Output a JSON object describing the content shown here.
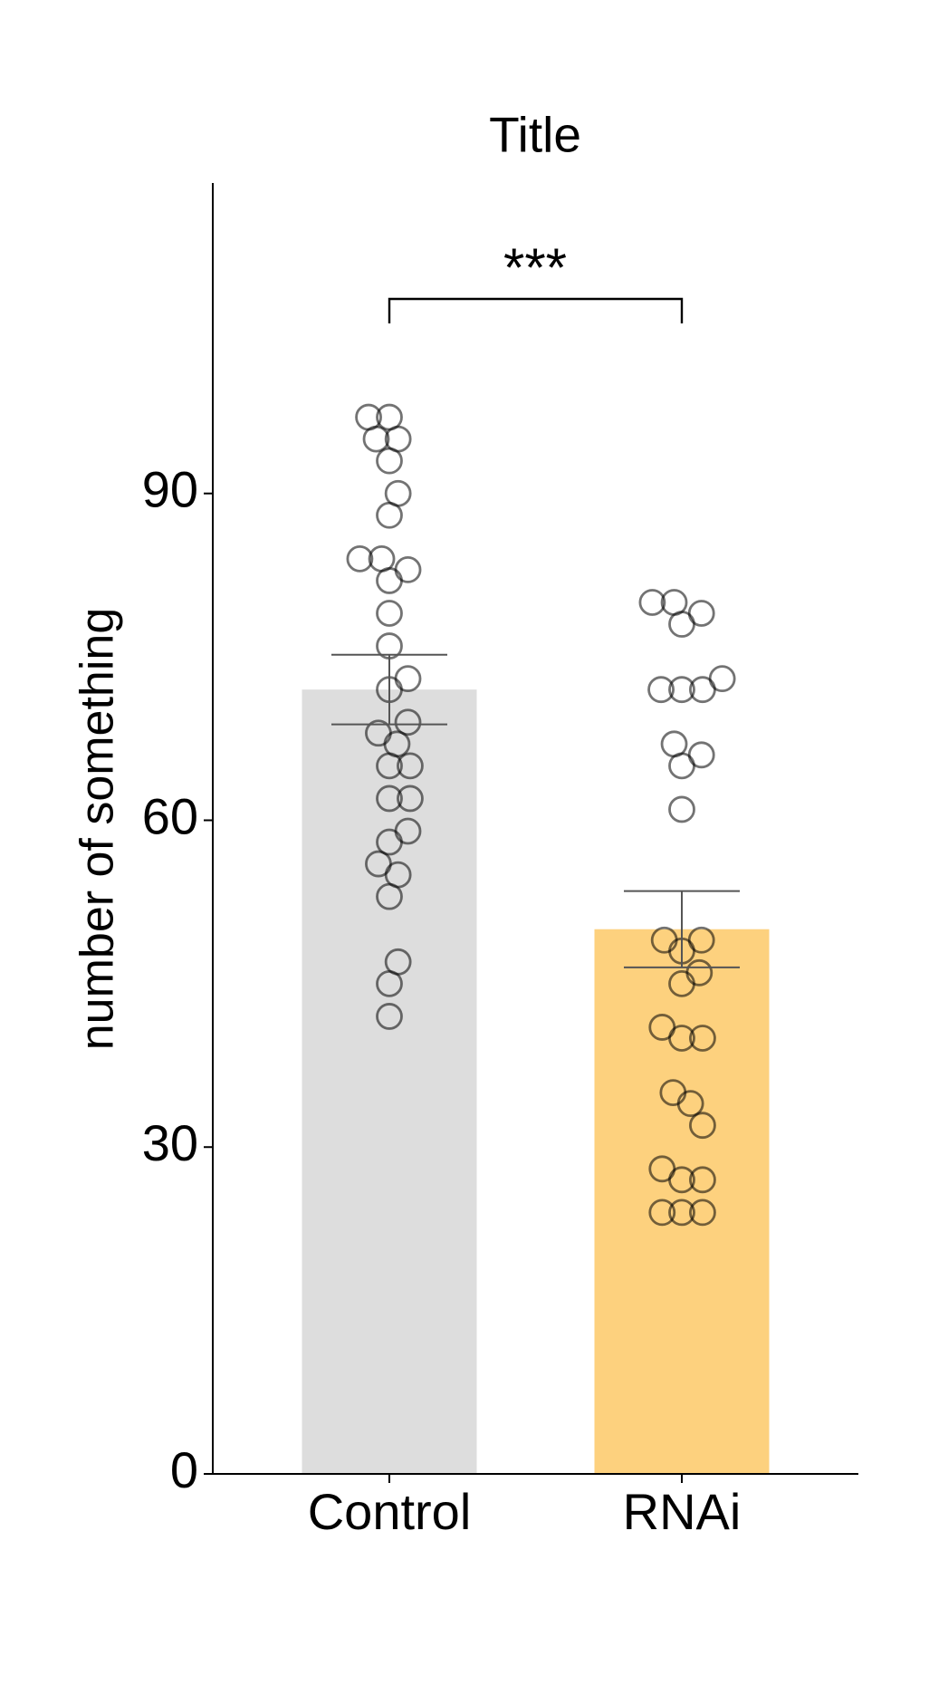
{
  "chart_data": {
    "type": "bar",
    "title": "Title",
    "y_label": "number of something",
    "categories": [
      "Control",
      "RNAi"
    ],
    "values": [
      72,
      50
    ],
    "errors": [
      3.2,
      3.5
    ],
    "colors": [
      "#dddddd",
      "#fdd17e"
    ],
    "points": [
      [
        97,
        97,
        95,
        95,
        93,
        90,
        88,
        84,
        84,
        83,
        82,
        79,
        76,
        73,
        72,
        69,
        68,
        67,
        65,
        65,
        62,
        62,
        59,
        58,
        56,
        55,
        53,
        47,
        45,
        42
      ],
      [
        80,
        80,
        79,
        78,
        73,
        72,
        72,
        72,
        67,
        66,
        65,
        61,
        49,
        49,
        48,
        46,
        45,
        41,
        40,
        40,
        35,
        34,
        32,
        28,
        27,
        27,
        24,
        24,
        24
      ]
    ],
    "significance": "***",
    "ylim": [
      0,
      118.5
    ],
    "yticks": [
      0,
      30,
      60,
      90
    ]
  }
}
